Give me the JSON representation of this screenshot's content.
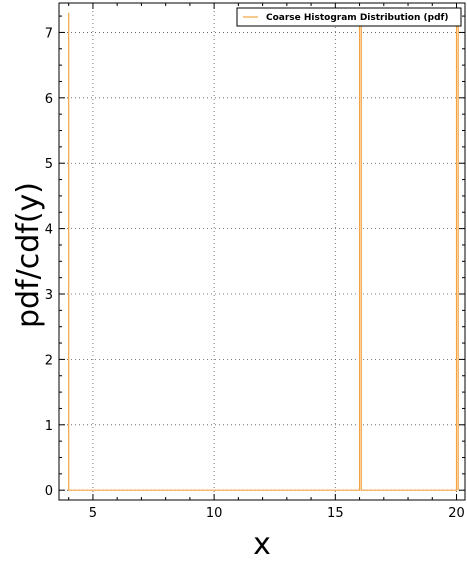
{
  "chart_data": {
    "type": "line",
    "title": "",
    "xlabel": "x",
    "ylabel": "pdf/cdf(y)",
    "xlim": [
      3.6,
      20.35
    ],
    "ylim": [
      -0.15,
      7.45
    ],
    "xticks": [
      5,
      10,
      15,
      20
    ],
    "yticks": [
      0,
      1,
      2,
      3,
      4,
      5,
      6,
      7
    ],
    "grid": true,
    "legend_position": "top-right",
    "series": [
      {
        "name": "Coarse Histogram Distribution (pdf)",
        "color": "#f5a340",
        "x": [
          4.0,
          4.0,
          4.0,
          16.0,
          16.0,
          16.07,
          16.07,
          20.0,
          20.0,
          20.07,
          20.07
        ],
        "y": [
          0.0,
          7.3,
          0.0,
          0.0,
          7.3,
          7.3,
          0.0,
          0.0,
          7.3,
          7.3,
          0.0
        ]
      }
    ]
  }
}
